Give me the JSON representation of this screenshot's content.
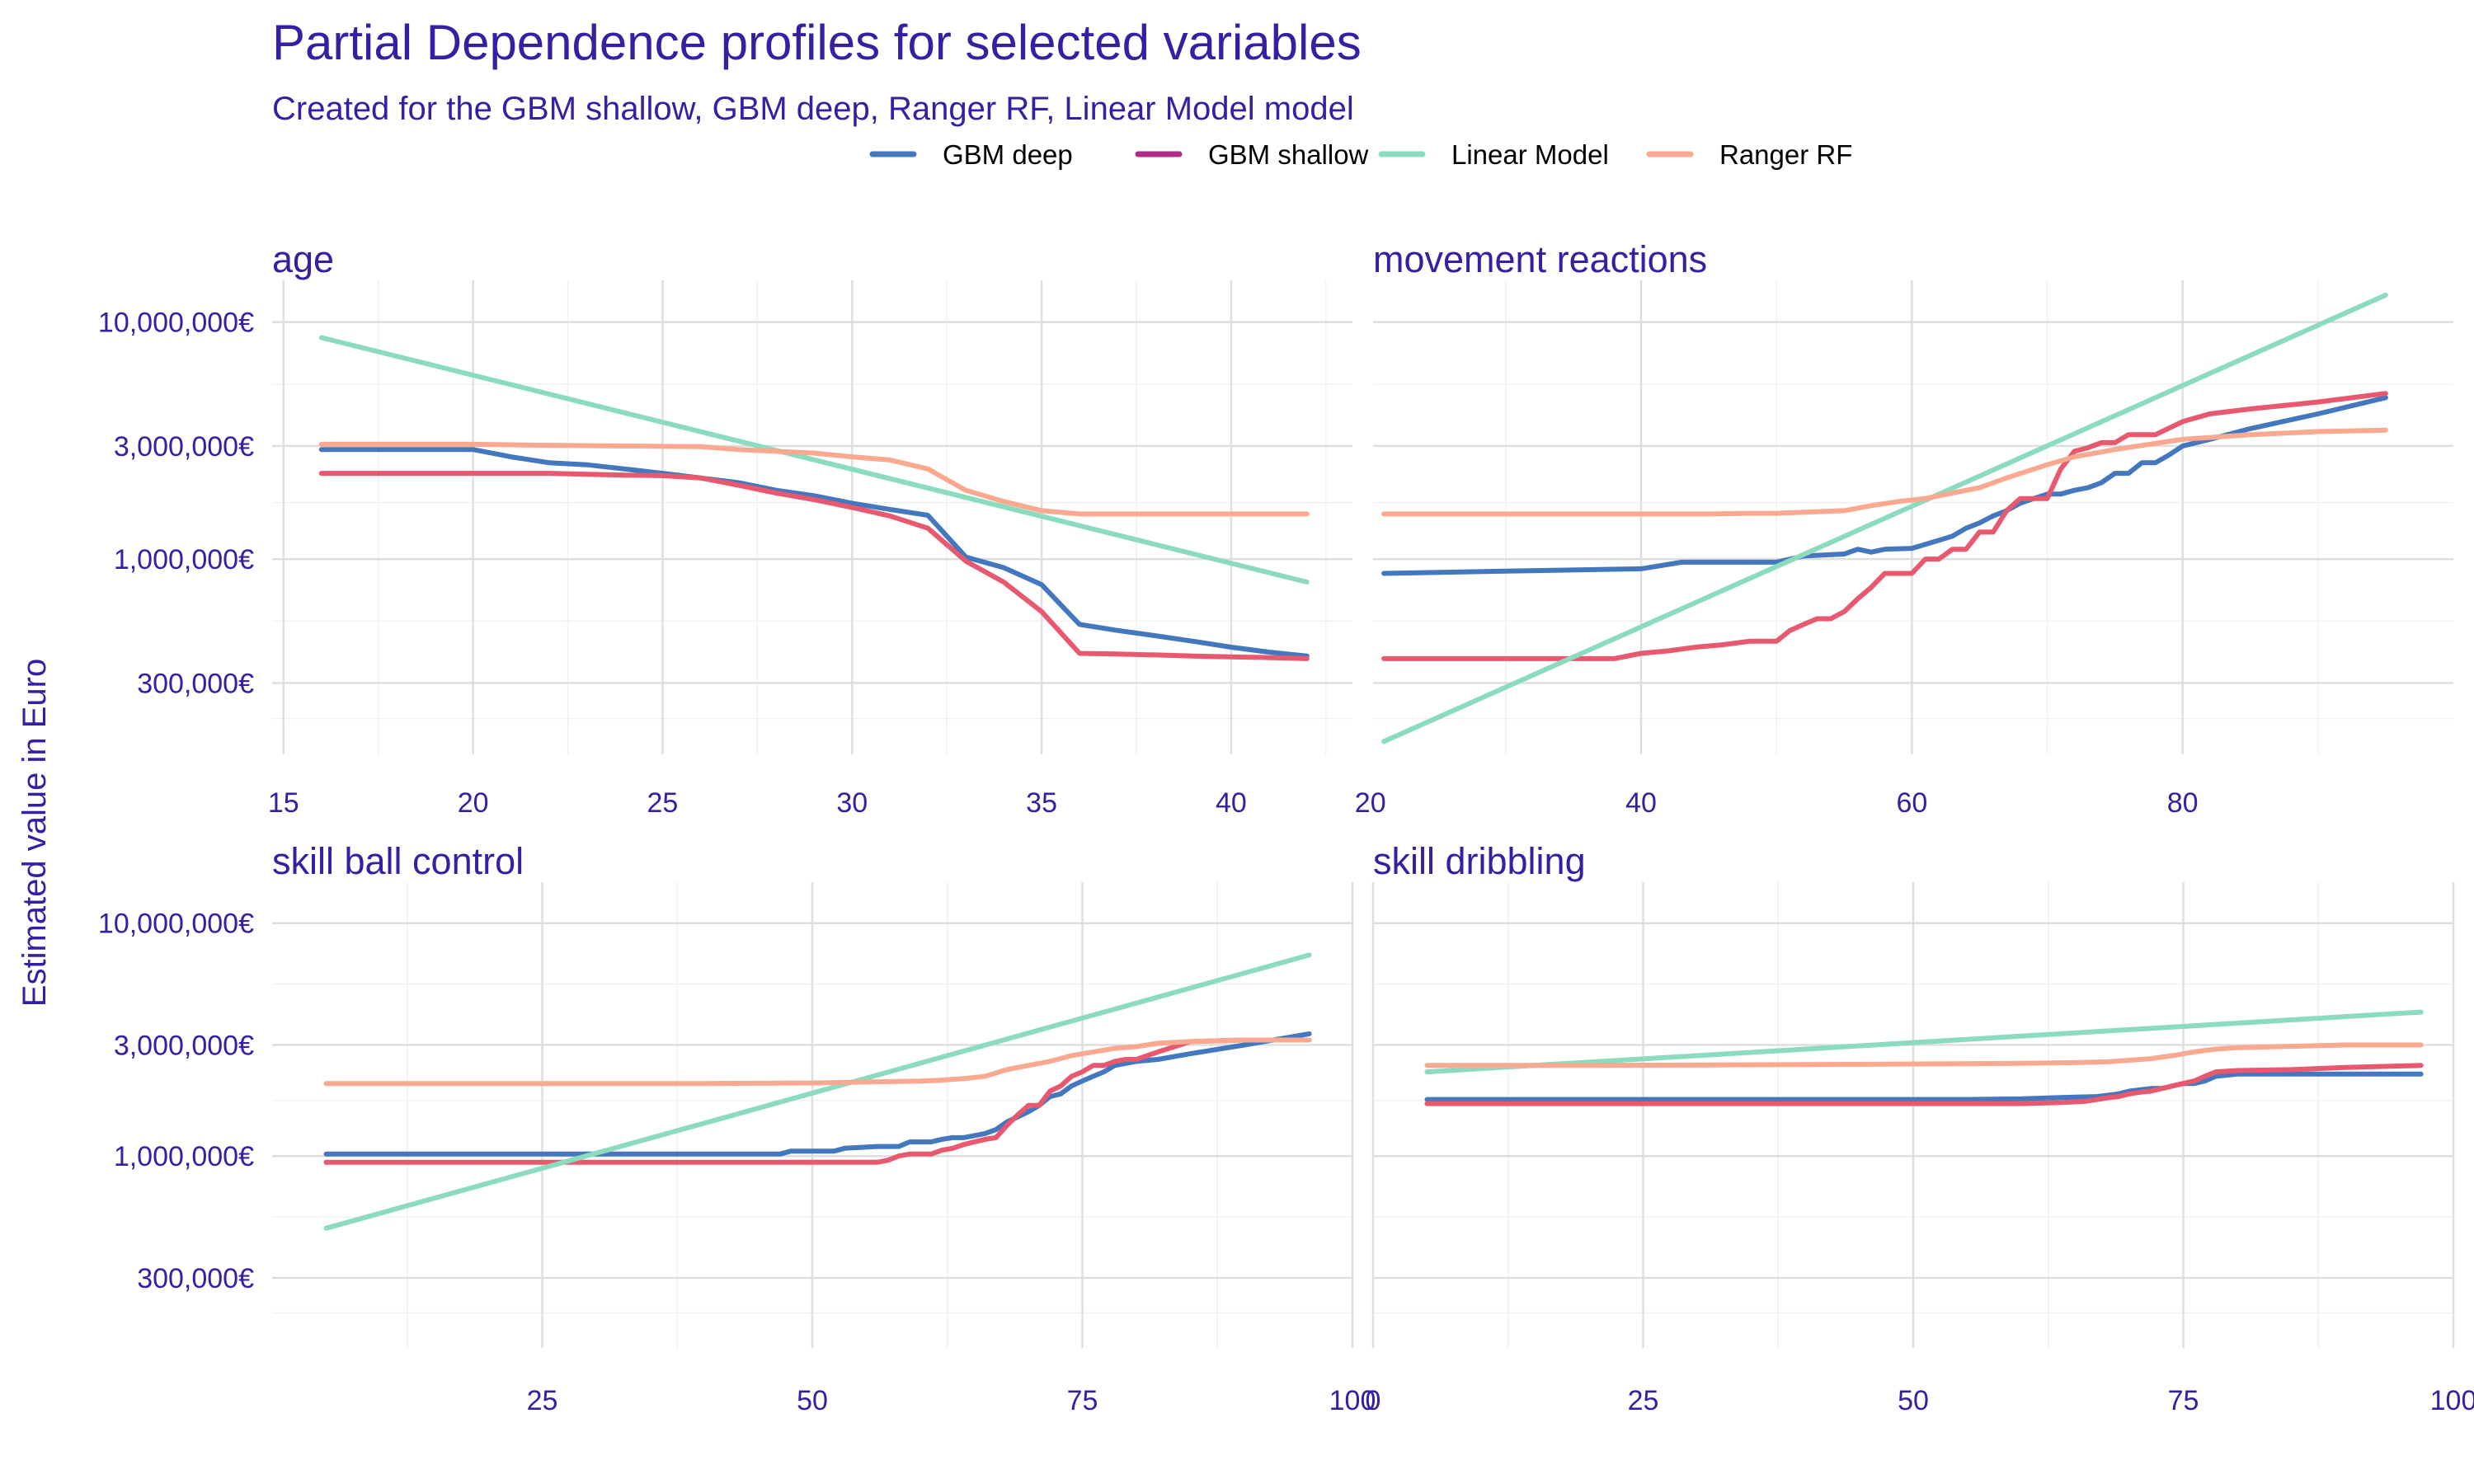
{
  "title": "Partial Dependence profiles for selected variables",
  "subtitle": "Created for the GBM shallow, GBM deep, Ranger RF, Linear Model model",
  "ylabel": "Estimated value in Euro",
  "legend": [
    {
      "name": "GBM deep",
      "color": "#4378bf"
    },
    {
      "name": "GBM shallow",
      "color": "#ae2c87"
    },
    {
      "name": "Linear Model",
      "color": "#8bdcbe"
    },
    {
      "name": "Ranger RF",
      "color": "#f9a98f"
    }
  ],
  "chart_data": [
    {
      "type": "line",
      "title": "age",
      "x_ticks": [
        15,
        20,
        25,
        30,
        35,
        40
      ],
      "x_tick_labels": [
        "15",
        "20",
        "25",
        "30",
        "35",
        "40"
      ],
      "xlim": [
        14.7,
        43.2
      ],
      "y_ticks": [
        300000,
        1000000,
        3000000,
        10000000
      ],
      "y_tick_labels": [
        "300,000€",
        "1,000,000€",
        "3,000,000€",
        "10,000,000€"
      ],
      "ylim": [
        150000,
        15000000
      ],
      "y_scale": "log",
      "series": [
        {
          "name": "GBM deep",
          "color": "#4378bf",
          "x": [
            16,
            20,
            21,
            22,
            23,
            24,
            25,
            26,
            27,
            28,
            29,
            30,
            31,
            32,
            33,
            34,
            35,
            36,
            37,
            38,
            39,
            40,
            41,
            42
          ],
          "y": [
            2900000,
            2900000,
            2700000,
            2550000,
            2500000,
            2400000,
            2300000,
            2200000,
            2100000,
            1950000,
            1850000,
            1720000,
            1620000,
            1530000,
            1020000,
            920000,
            780000,
            530000,
            500000,
            475000,
            450000,
            425000,
            405000,
            390000
          ]
        },
        {
          "name": "GBM shallow",
          "color": "#e8586e",
          "x": [
            16,
            20,
            21,
            22,
            23,
            24,
            25,
            26,
            27,
            28,
            29,
            30,
            31,
            32,
            33,
            34,
            35,
            36,
            37,
            38,
            39,
            40,
            41,
            42
          ],
          "y": [
            2300000,
            2300000,
            2300000,
            2300000,
            2280000,
            2260000,
            2250000,
            2200000,
            2050000,
            1900000,
            1780000,
            1650000,
            1520000,
            1350000,
            980000,
            800000,
            600000,
            400000,
            398000,
            394000,
            390000,
            387000,
            384000,
            380000
          ]
        },
        {
          "name": "Linear Model",
          "color": "#8bdcbe",
          "x": [
            16,
            42
          ],
          "y": [
            8600000,
            800000
          ]
        },
        {
          "name": "Ranger RF",
          "color": "#f9a98f",
          "x": [
            16,
            20,
            22,
            24,
            26,
            27,
            28,
            29,
            30,
            31,
            32,
            33,
            34,
            35,
            36,
            42
          ],
          "y": [
            3050000,
            3050000,
            3020000,
            3000000,
            2980000,
            2900000,
            2850000,
            2800000,
            2700000,
            2620000,
            2400000,
            1950000,
            1750000,
            1600000,
            1550000,
            1550000
          ]
        }
      ]
    },
    {
      "type": "line",
      "title": "movement_reactions",
      "x_ticks": [
        20,
        40,
        60,
        80
      ],
      "x_tick_labels": [
        "20",
        "40",
        "60",
        "80"
      ],
      "xlim": [
        20.2,
        100
      ],
      "y_ticks": [
        300000,
        1000000,
        3000000,
        10000000
      ],
      "y_tick_labels": [
        "300,000€",
        "1,000,000€",
        "3,000,000€",
        "10,000,000€"
      ],
      "ylim": [
        150000,
        15000000
      ],
      "y_scale": "log",
      "series": [
        {
          "name": "GBM deep",
          "color": "#4378bf",
          "x": [
            21,
            30,
            40,
            43,
            50,
            52,
            55,
            56,
            57,
            58,
            60,
            62,
            63,
            64,
            65,
            66,
            67,
            68,
            69,
            70,
            71,
            72,
            73,
            74,
            75,
            76,
            77,
            78,
            79,
            80,
            82,
            85,
            90,
            95
          ],
          "y": [
            870000,
            890000,
            910000,
            970000,
            970000,
            1030000,
            1050000,
            1100000,
            1070000,
            1100000,
            1110000,
            1200000,
            1250000,
            1350000,
            1420000,
            1520000,
            1600000,
            1720000,
            1800000,
            1880000,
            1880000,
            1950000,
            2000000,
            2100000,
            2300000,
            2300000,
            2550000,
            2550000,
            2750000,
            3000000,
            3200000,
            3550000,
            4100000,
            4800000
          ]
        },
        {
          "name": "GBM shallow",
          "color": "#e8586e",
          "x": [
            21,
            30,
            38,
            40,
            42,
            44,
            46,
            48,
            50,
            51,
            52,
            53,
            54,
            55,
            56,
            57,
            58,
            59,
            60,
            61,
            62,
            63,
            64,
            65,
            66,
            67,
            68,
            69,
            70,
            71,
            72,
            73,
            74,
            75,
            76,
            77,
            78,
            80,
            82,
            85,
            90,
            95
          ],
          "y": [
            380000,
            380000,
            380000,
            400000,
            410000,
            425000,
            435000,
            450000,
            450000,
            500000,
            530000,
            560000,
            560000,
            600000,
            680000,
            760000,
            870000,
            870000,
            870000,
            1000000,
            1000000,
            1100000,
            1100000,
            1300000,
            1300000,
            1600000,
            1800000,
            1800000,
            1800000,
            2400000,
            2850000,
            2950000,
            3100000,
            3100000,
            3350000,
            3350000,
            3350000,
            3800000,
            4100000,
            4300000,
            4600000,
            5000000
          ]
        },
        {
          "name": "Linear Model",
          "color": "#8bdcbe",
          "x": [
            21,
            95
          ],
          "y": [
            170000,
            13000000
          ]
        },
        {
          "name": "Ranger RF",
          "color": "#f9a98f",
          "x": [
            21,
            30,
            40,
            45,
            48,
            50,
            55,
            57,
            59,
            61,
            63,
            65,
            67,
            70,
            72,
            75,
            80,
            85,
            90,
            95
          ],
          "y": [
            1550000,
            1550000,
            1550000,
            1550000,
            1560000,
            1560000,
            1600000,
            1680000,
            1750000,
            1800000,
            1900000,
            2000000,
            2200000,
            2500000,
            2700000,
            2900000,
            3200000,
            3350000,
            3450000,
            3500000
          ]
        }
      ]
    },
    {
      "type": "line",
      "title": "skill_ball_control",
      "x_ticks": [
        25,
        50,
        75,
        100
      ],
      "x_tick_labels": [
        "25",
        "50",
        "75",
        "100"
      ],
      "xlim": [
        0,
        100
      ],
      "y_ticks": [
        300000,
        1000000,
        3000000,
        10000000
      ],
      "y_tick_labels": [
        "300,000€",
        "1,000,000€",
        "3,000,000€",
        "10,000,000€"
      ],
      "ylim": [
        150000,
        15000000
      ],
      "y_scale": "log",
      "series": [
        {
          "name": "GBM deep",
          "color": "#4378bf",
          "x": [
            5,
            20,
            30,
            40,
            47,
            48,
            52,
            53,
            56,
            58,
            59,
            61,
            62,
            63,
            64,
            66,
            67,
            68,
            70,
            71,
            72,
            73,
            74,
            75,
            76,
            77,
            78,
            80,
            82,
            85,
            90,
            96
          ],
          "y": [
            1020000,
            1020000,
            1020000,
            1020000,
            1020000,
            1050000,
            1050000,
            1080000,
            1100000,
            1100000,
            1150000,
            1150000,
            1180000,
            1200000,
            1200000,
            1250000,
            1300000,
            1400000,
            1550000,
            1650000,
            1800000,
            1850000,
            2000000,
            2100000,
            2200000,
            2300000,
            2450000,
            2550000,
            2600000,
            2750000,
            3000000,
            3350000
          ]
        },
        {
          "name": "GBM shallow",
          "color": "#e8586e",
          "x": [
            5,
            20,
            40,
            56,
            57,
            58,
            59,
            61,
            62,
            63,
            64,
            65,
            66,
            67,
            68,
            69,
            70,
            71,
            72,
            73,
            74,
            75,
            76,
            77,
            78,
            79,
            80,
            82,
            85,
            90,
            96
          ],
          "y": [
            940000,
            940000,
            940000,
            940000,
            960000,
            1000000,
            1020000,
            1020000,
            1060000,
            1080000,
            1120000,
            1150000,
            1180000,
            1200000,
            1350000,
            1500000,
            1650000,
            1650000,
            1900000,
            2000000,
            2200000,
            2300000,
            2450000,
            2450000,
            2550000,
            2600000,
            2600000,
            2800000,
            3100000,
            3150000,
            3150000
          ]
        },
        {
          "name": "Linear Model",
          "color": "#8bdcbe",
          "x": [
            5,
            96
          ],
          "y": [
            490000,
            7300000
          ]
        },
        {
          "name": "Ranger RF",
          "color": "#f9a98f",
          "x": [
            5,
            20,
            40,
            50,
            55,
            60,
            62,
            64,
            66,
            68,
            70,
            72,
            74,
            76,
            78,
            80,
            82,
            85,
            90,
            96
          ],
          "y": [
            2050000,
            2050000,
            2050000,
            2060000,
            2080000,
            2100000,
            2120000,
            2150000,
            2200000,
            2350000,
            2450000,
            2550000,
            2700000,
            2800000,
            2900000,
            2950000,
            3050000,
            3100000,
            3150000,
            3150000
          ]
        }
      ]
    },
    {
      "type": "line",
      "title": "skill_dribbling",
      "x_ticks": [
        0,
        25,
        50,
        75,
        100
      ],
      "x_tick_labels": [
        "0",
        "25",
        "50",
        "75",
        "100"
      ],
      "xlim": [
        0,
        100
      ],
      "y_ticks": [
        300000,
        1000000,
        3000000,
        10000000
      ],
      "y_tick_labels": [
        "300,000€",
        "1,000,000€",
        "3,000,000€",
        "10,000,000€"
      ],
      "ylim": [
        150000,
        15000000
      ],
      "y_scale": "log",
      "series": [
        {
          "name": "GBM deep",
          "color": "#4378bf",
          "x": [
            5,
            20,
            40,
            55,
            60,
            63,
            65,
            67,
            69,
            70,
            72,
            73,
            74,
            75,
            76,
            77,
            78,
            80,
            85,
            90,
            97
          ],
          "y": [
            1750000,
            1750000,
            1750000,
            1750000,
            1760000,
            1780000,
            1790000,
            1800000,
            1850000,
            1900000,
            1950000,
            1950000,
            2000000,
            2050000,
            2050000,
            2100000,
            2200000,
            2250000,
            2250000,
            2250000,
            2250000
          ]
        },
        {
          "name": "GBM shallow",
          "color": "#e8586e",
          "x": [
            5,
            20,
            40,
            60,
            62,
            64,
            66,
            68,
            69,
            70,
            71,
            72,
            73,
            74,
            75,
            76,
            77,
            78,
            80,
            85,
            90,
            97
          ],
          "y": [
            1680000,
            1680000,
            1680000,
            1680000,
            1690000,
            1700000,
            1720000,
            1780000,
            1800000,
            1850000,
            1880000,
            1900000,
            1950000,
            2000000,
            2050000,
            2100000,
            2200000,
            2300000,
            2330000,
            2350000,
            2400000,
            2450000
          ]
        },
        {
          "name": "Linear Model",
          "color": "#8bdcbe",
          "x": [
            5,
            97
          ],
          "y": [
            2300000,
            4150000
          ]
        },
        {
          "name": "Ranger RF",
          "color": "#f9a98f",
          "x": [
            5,
            20,
            40,
            60,
            65,
            68,
            70,
            72,
            74,
            76,
            78,
            80,
            85,
            90,
            97
          ],
          "y": [
            2450000,
            2450000,
            2470000,
            2500000,
            2520000,
            2540000,
            2580000,
            2620000,
            2700000,
            2800000,
            2880000,
            2920000,
            2960000,
            3000000,
            3000000
          ]
        }
      ]
    }
  ]
}
